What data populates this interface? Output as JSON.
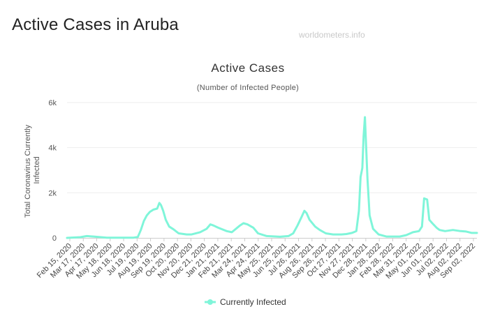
{
  "page": {
    "title": "Active Cases in Aruba",
    "watermark": "worldometers.info"
  },
  "colors": {
    "series": "#7ff5d9",
    "grid": "#eeeeee",
    "axis": "#cccccc"
  },
  "chart_data": {
    "type": "line",
    "title": "Active Cases",
    "subtitle": "(Number of Infected People)",
    "ylabel_lines": [
      "Total Coronavirus Currently",
      "Infected"
    ],
    "ylim": [
      0,
      6000
    ],
    "yticks": [
      0,
      2000,
      4000,
      6000
    ],
    "ytick_labels": [
      "0",
      "2k",
      "4k",
      "6k"
    ],
    "xlim": [
      "2020-02-15",
      "2022-09-27"
    ],
    "xtick_labels": [
      "Feb 15, 2020",
      "Mar 17, 2020",
      "Apr 17, 2020",
      "May 18, 2020",
      "Jun 18, 2020",
      "Jul 19, 2020",
      "Aug 19, 2020",
      "Sep 19, 2020",
      "Oct 20, 2020",
      "Nov 20, 2020",
      "Dec 21, 2020",
      "Jan 21, 2021",
      "Feb 21, 2021",
      "Mar 24, 2021",
      "Apr 24, 2021",
      "May 25, 2021",
      "Jun 25, 2021",
      "Jul 26, 2021",
      "Aug 26, 2021",
      "Sep 26, 2021",
      "Oct 27, 2021",
      "Nov 27, 2021",
      "Dec 28, 2021",
      "Jan 28, 2022",
      "Feb 28, 2022",
      "Mar 31, 2022",
      "May 01, 2022",
      "Jun 01, 2022",
      "Jul 02, 2022",
      "Aug 02, 2022",
      "Sep 02, 2022"
    ],
    "grid": true,
    "legend": "bottom-center",
    "series": [
      {
        "name": "Currently Infected",
        "points": [
          [
            "2020-02-15",
            0
          ],
          [
            "2020-03-17",
            30
          ],
          [
            "2020-04-01",
            80
          ],
          [
            "2020-04-17",
            60
          ],
          [
            "2020-05-18",
            10
          ],
          [
            "2020-06-18",
            5
          ],
          [
            "2020-07-19",
            10
          ],
          [
            "2020-07-29",
            40
          ],
          [
            "2020-08-05",
            350
          ],
          [
            "2020-08-12",
            750
          ],
          [
            "2020-08-19",
            1000
          ],
          [
            "2020-08-26",
            1150
          ],
          [
            "2020-09-03",
            1250
          ],
          [
            "2020-09-12",
            1300
          ],
          [
            "2020-09-17",
            1550
          ],
          [
            "2020-09-21",
            1450
          ],
          [
            "2020-09-26",
            1200
          ],
          [
            "2020-10-02",
            800
          ],
          [
            "2020-10-10",
            500
          ],
          [
            "2020-10-20",
            380
          ],
          [
            "2020-11-01",
            200
          ],
          [
            "2020-11-20",
            150
          ],
          [
            "2020-12-01",
            150
          ],
          [
            "2020-12-21",
            250
          ],
          [
            "2021-01-05",
            400
          ],
          [
            "2021-01-14",
            600
          ],
          [
            "2021-01-21",
            550
          ],
          [
            "2021-02-01",
            450
          ],
          [
            "2021-02-21",
            300
          ],
          [
            "2021-03-05",
            250
          ],
          [
            "2021-03-24",
            550
          ],
          [
            "2021-04-01",
            650
          ],
          [
            "2021-04-10",
            600
          ],
          [
            "2021-04-24",
            450
          ],
          [
            "2021-05-05",
            200
          ],
          [
            "2021-05-25",
            80
          ],
          [
            "2021-06-25",
            50
          ],
          [
            "2021-07-15",
            80
          ],
          [
            "2021-07-26",
            200
          ],
          [
            "2021-08-05",
            550
          ],
          [
            "2021-08-15",
            950
          ],
          [
            "2021-08-21",
            1200
          ],
          [
            "2021-08-26",
            1100
          ],
          [
            "2021-09-02",
            800
          ],
          [
            "2021-09-15",
            500
          ],
          [
            "2021-09-26",
            350
          ],
          [
            "2021-10-10",
            200
          ],
          [
            "2021-10-27",
            150
          ],
          [
            "2021-11-15",
            150
          ],
          [
            "2021-11-27",
            170
          ],
          [
            "2021-12-10",
            220
          ],
          [
            "2021-12-20",
            300
          ],
          [
            "2021-12-26",
            1200
          ],
          [
            "2021-12-30",
            2700
          ],
          [
            "2022-01-03",
            3100
          ],
          [
            "2022-01-06",
            4500
          ],
          [
            "2022-01-09",
            5350
          ],
          [
            "2022-01-12",
            4000
          ],
          [
            "2022-01-15",
            2600
          ],
          [
            "2022-01-20",
            1000
          ],
          [
            "2022-01-28",
            400
          ],
          [
            "2022-02-10",
            150
          ],
          [
            "2022-02-28",
            60
          ],
          [
            "2022-03-31",
            60
          ],
          [
            "2022-04-15",
            120
          ],
          [
            "2022-05-01",
            250
          ],
          [
            "2022-05-15",
            300
          ],
          [
            "2022-05-22",
            500
          ],
          [
            "2022-05-27",
            1750
          ],
          [
            "2022-06-03",
            1700
          ],
          [
            "2022-06-08",
            800
          ],
          [
            "2022-06-15",
            650
          ],
          [
            "2022-06-25",
            450
          ],
          [
            "2022-07-02",
            350
          ],
          [
            "2022-07-15",
            300
          ],
          [
            "2022-08-02",
            350
          ],
          [
            "2022-08-20",
            300
          ],
          [
            "2022-09-02",
            280
          ],
          [
            "2022-09-15",
            220
          ],
          [
            "2022-09-27",
            220
          ]
        ]
      }
    ]
  }
}
